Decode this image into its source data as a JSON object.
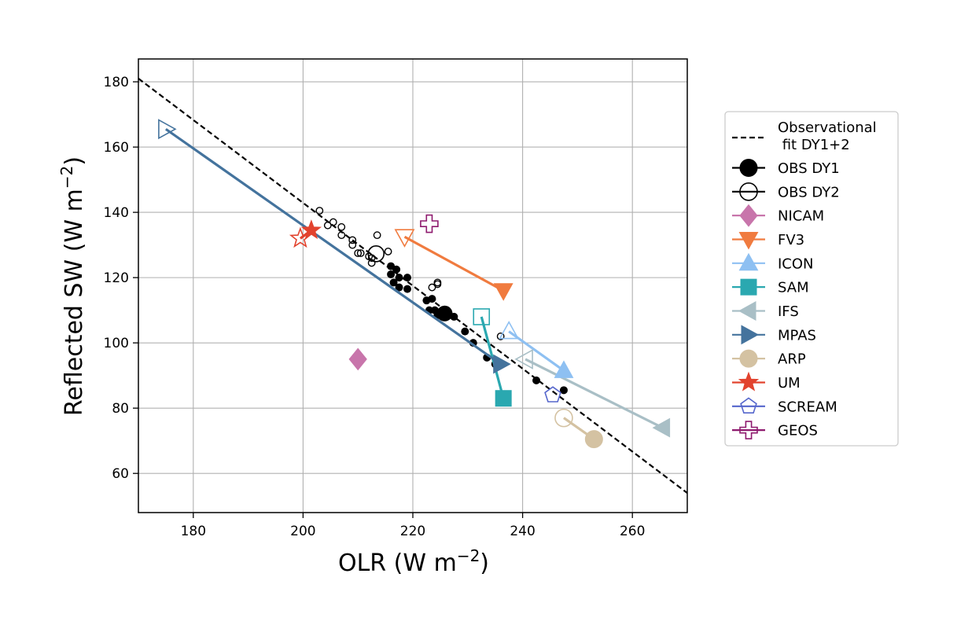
{
  "chart_data": {
    "type": "scatter",
    "title": "",
    "xlabel": "OLR (W m$^{-2}$)",
    "ylabel": "Reflected SW (W m$^{-2}$)",
    "xlim": [
      170,
      270
    ],
    "ylim": [
      48,
      187
    ],
    "xticks": [
      "180",
      "200",
      "220",
      "240",
      "260"
    ],
    "yticks": [
      "60",
      "80",
      "100",
      "120",
      "140",
      "160",
      "180"
    ],
    "grid": true,
    "legend_position": "right, outside plot",
    "fit_line": {
      "name": "Observational\n fit DY1+2",
      "points": [
        [
          170,
          181
        ],
        [
          270,
          54
        ]
      ],
      "color": "#000000",
      "style": "dashed"
    },
    "obs_dy1_points": [
      [
        216,
        123.5
      ],
      [
        217,
        122.5
      ],
      [
        216,
        121
      ],
      [
        217.5,
        120
      ],
      [
        219,
        120
      ],
      [
        216.5,
        118.5
      ],
      [
        217.5,
        117
      ],
      [
        219,
        116.5
      ],
      [
        222.5,
        113
      ],
      [
        223.5,
        113.5
      ],
      [
        224,
        110
      ],
      [
        223,
        110
      ],
      [
        225,
        109.5
      ],
      [
        224.5,
        108.5
      ],
      [
        226,
        108
      ],
      [
        227.5,
        108
      ],
      [
        229.5,
        103.5
      ],
      [
        231,
        100
      ],
      [
        233.5,
        95.5
      ],
      [
        235,
        93.5
      ],
      [
        242.5,
        88.5
      ],
      [
        247.5,
        85.5
      ]
    ],
    "obs_dy1_large": [
      225.8,
      109
    ],
    "obs_dy2_points": [
      [
        203,
        140.5
      ],
      [
        204.5,
        136
      ],
      [
        205.5,
        137
      ],
      [
        207,
        135.5
      ],
      [
        207,
        133
      ],
      [
        209,
        131.5
      ],
      [
        209,
        130
      ],
      [
        210,
        127.5
      ],
      [
        210.5,
        127.5
      ],
      [
        212,
        126.5
      ],
      [
        212.5,
        126
      ],
      [
        212.5,
        124.5
      ],
      [
        213.5,
        133
      ],
      [
        215.5,
        128
      ],
      [
        223.5,
        117
      ],
      [
        224.5,
        118.5
      ],
      [
        224.5,
        118
      ],
      [
        236,
        102
      ]
    ],
    "obs_dy2_large": [
      213.3,
      127.3
    ],
    "series": [
      {
        "name": "OBS DY1",
        "marker": "circle",
        "filled": true,
        "color": "#000000",
        "dy1": null,
        "dy2": null
      },
      {
        "name": "OBS DY2",
        "marker": "circle",
        "filled": false,
        "color": "#000000",
        "dy1": null,
        "dy2": null
      },
      {
        "name": "NICAM",
        "marker": "diamond",
        "filled": true,
        "color": "#c875ab",
        "dy1": [
          210,
          95
        ],
        "dy2": null
      },
      {
        "name": "FV3",
        "marker": "triangle-down",
        "filled": true,
        "color": "#f07b3f",
        "dy1": [
          236.5,
          116
        ],
        "dy2": [
          218.5,
          132.5
        ]
      },
      {
        "name": "ICON",
        "marker": "triangle-up",
        "filled": true,
        "color": "#8ec0f2",
        "dy1": [
          247.5,
          91.5
        ],
        "dy2": [
          237.5,
          103.5
        ]
      },
      {
        "name": "SAM",
        "marker": "square",
        "filled": true,
        "color": "#2aa8b0",
        "dy1": [
          236.5,
          83
        ],
        "dy2": [
          232.5,
          108
        ]
      },
      {
        "name": "IFS",
        "marker": "triangle-left",
        "filled": true,
        "color": "#a9bfc6",
        "dy1": [
          265.5,
          74
        ],
        "dy2": [
          240.5,
          95
        ]
      },
      {
        "name": "MPAS",
        "marker": "triangle-right",
        "filled": true,
        "color": "#44739d",
        "dy1": [
          236,
          93.5
        ],
        "dy2": [
          175,
          165.5
        ]
      },
      {
        "name": "ARP",
        "marker": "circle",
        "filled": true,
        "color": "#d4c2a2",
        "dy1": [
          253,
          70.5
        ],
        "dy2": [
          247.5,
          77
        ]
      },
      {
        "name": "UM",
        "marker": "star",
        "filled": true,
        "color": "#e2432e",
        "dy1": [
          201.5,
          134.5
        ],
        "dy2": [
          199.5,
          132
        ]
      },
      {
        "name": "SCREAM",
        "marker": "pentagon",
        "filled": false,
        "color": "#5566cc",
        "dy1": null,
        "dy2": [
          245.5,
          84
        ]
      },
      {
        "name": "GEOS",
        "marker": "plus",
        "filled": false,
        "color": "#8e1a6e",
        "dy1": null,
        "dy2": [
          223,
          136.5
        ]
      }
    ]
  }
}
